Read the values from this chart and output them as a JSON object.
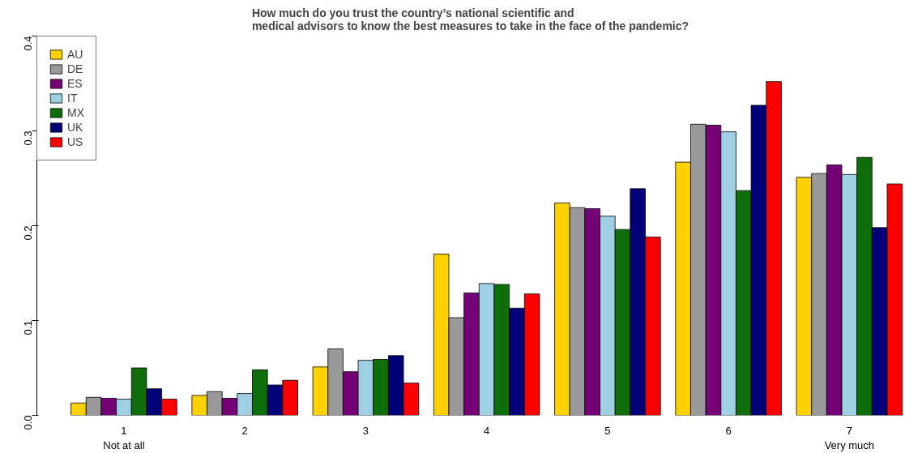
{
  "chart_data": {
    "type": "bar",
    "title": "How much do you trust the country’s national scientific and\nmedical advisors to know the best measures to take in the face of the pandemic?",
    "categories": [
      "1\nNot at all",
      "2",
      "3",
      "4",
      "5",
      "6",
      "7\nVery much"
    ],
    "series": [
      {
        "name": "AU",
        "color": "#ffd200",
        "values": [
          0.013,
          0.021,
          0.051,
          0.17,
          0.224,
          0.267,
          0.251
        ]
      },
      {
        "name": "DE",
        "color": "#999999",
        "values": [
          0.019,
          0.025,
          0.07,
          0.103,
          0.219,
          0.307,
          0.255
        ]
      },
      {
        "name": "ES",
        "color": "#750075",
        "values": [
          0.018,
          0.018,
          0.046,
          0.129,
          0.218,
          0.306,
          0.264
        ]
      },
      {
        "name": "IT",
        "color": "#9ecfe3",
        "values": [
          0.017,
          0.023,
          0.058,
          0.139,
          0.21,
          0.299,
          0.254
        ]
      },
      {
        "name": "MX",
        "color": "#0e6e0a",
        "values": [
          0.05,
          0.048,
          0.059,
          0.138,
          0.196,
          0.237,
          0.272
        ]
      },
      {
        "name": "UK",
        "color": "#000078",
        "values": [
          0.028,
          0.032,
          0.063,
          0.113,
          0.239,
          0.327,
          0.198
        ]
      },
      {
        "name": "US",
        "color": "#ff0000",
        "values": [
          0.017,
          0.037,
          0.034,
          0.128,
          0.188,
          0.352,
          0.244
        ]
      }
    ],
    "ylim": [
      0,
      0.4
    ],
    "yticks": [
      {
        "value": 0,
        "label": "0.0"
      },
      0.1,
      0.2,
      0.3,
      0.4
    ],
    "grid": false,
    "legend": "top left"
  }
}
